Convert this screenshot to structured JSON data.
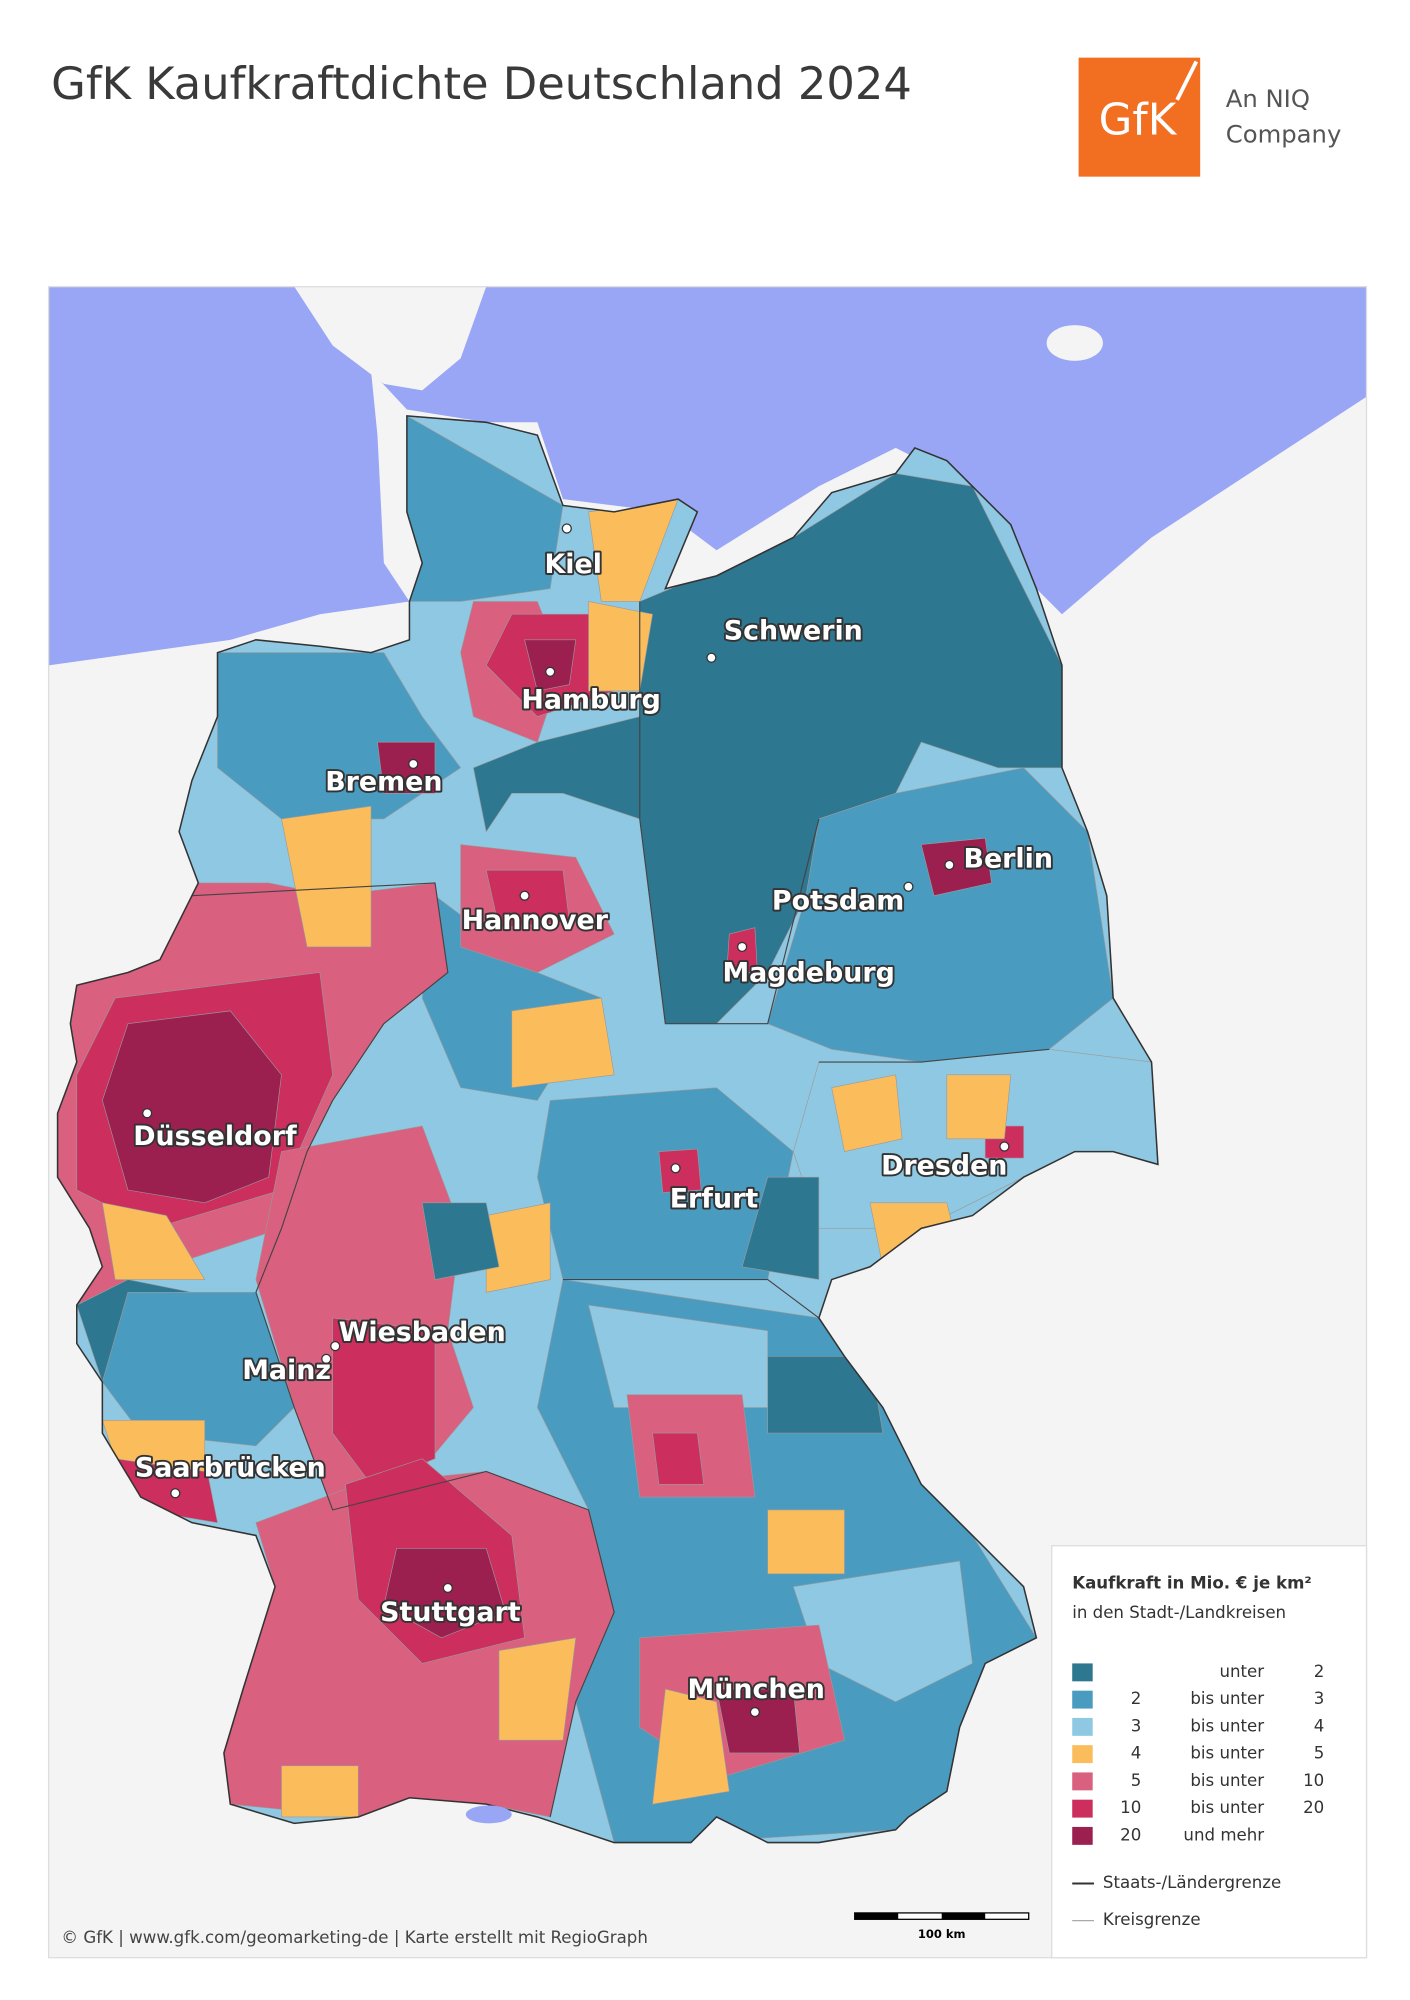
{
  "title": "GfK Kaufkraftdichte Deutschland 2024",
  "logo": {
    "mark": "GfK",
    "tagline": [
      "An NIQ",
      "Company"
    ]
  },
  "cities": [
    "Kiel",
    "Schwerin",
    "Hamburg",
    "Bremen",
    "Hannover",
    "Berlin",
    "Potsdam",
    "Magdeburg",
    "Düsseldorf",
    "Dresden",
    "Erfurt",
    "Wiesbaden",
    "Mainz",
    "Saarbrücken",
    "Stuttgart",
    "München"
  ],
  "legend": {
    "title": "Kaufkraft in Mio. € je km²",
    "subtitle": "in den Stadt-/Landkreisen",
    "classes": [
      {
        "color": "#2e7791",
        "connector": "unter",
        "upper": "2"
      },
      {
        "color": "#4a9bc0",
        "lower": "2",
        "connector": "bis unter",
        "upper": "3"
      },
      {
        "color": "#8fc8e2",
        "lower": "3",
        "connector": "bis unter",
        "upper": "4"
      },
      {
        "color": "#fbbd5b",
        "lower": "4",
        "connector": "bis unter",
        "upper": "5"
      },
      {
        "color": "#d9607f",
        "lower": "5",
        "connector": "bis unter",
        "upper": "10"
      },
      {
        "color": "#cc2e5e",
        "lower": "10",
        "connector": "bis unter",
        "upper": "20"
      },
      {
        "color": "#9b2050",
        "lower": "20",
        "connector": "und mehr"
      }
    ],
    "lines": [
      {
        "label": "Staats-/Ländergrenze"
      },
      {
        "label": "Kreisgrenze"
      }
    ]
  },
  "scale_bar": "100 km",
  "footer": "© GfK | www.gfk.com/geomarketing-de | Karte erstellt mit RegioGraph"
}
